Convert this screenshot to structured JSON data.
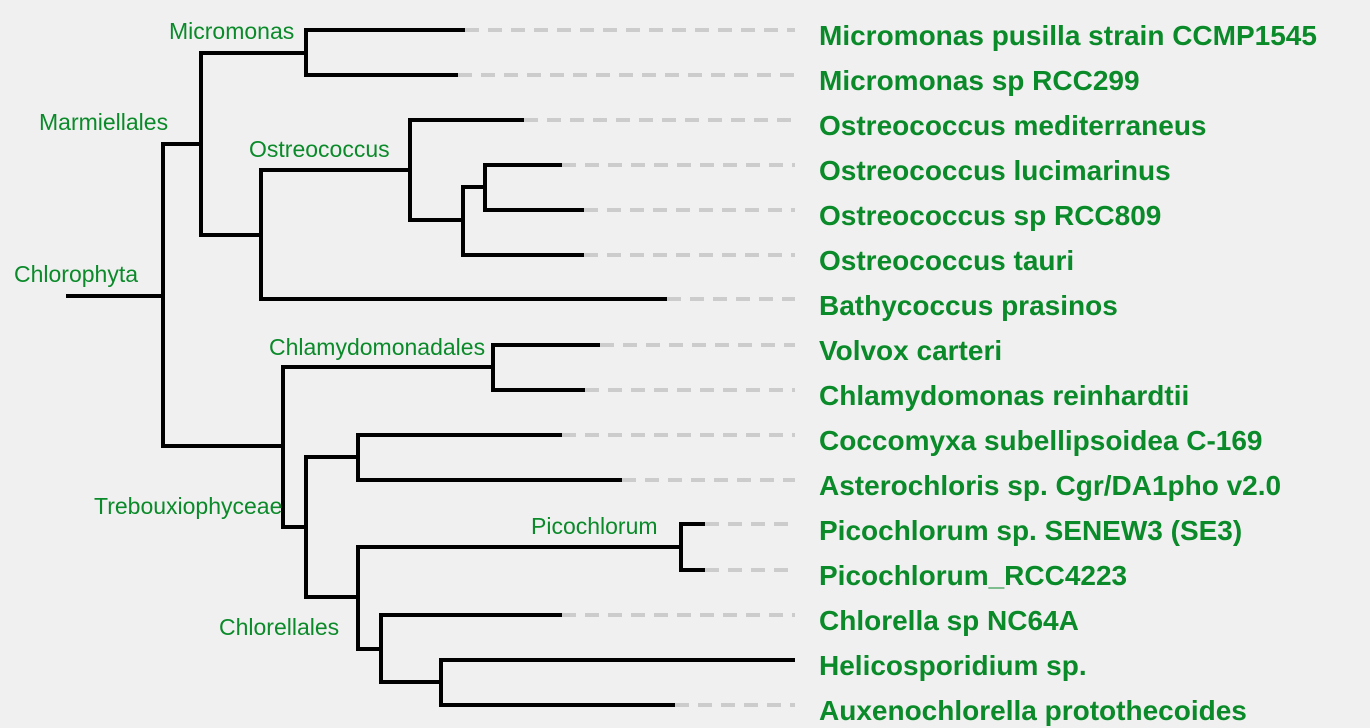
{
  "colors": {
    "label": "#0b8a2a",
    "branch": "#000000",
    "leader": "#cccccc",
    "background": "#f0f0f0"
  },
  "clades": [
    {
      "id": "chlorophyta",
      "label": "Chlorophyta"
    },
    {
      "id": "marmiellales",
      "label": "Marmiellales"
    },
    {
      "id": "micromonas",
      "label": "Micromonas"
    },
    {
      "id": "ostreococcus",
      "label": "Ostreococcus"
    },
    {
      "id": "chlamydomonadales",
      "label": "Chlamydomonadales"
    },
    {
      "id": "trebouxiophyceae",
      "label": "Trebouxiophyceae"
    },
    {
      "id": "picochlorum",
      "label": "Picochlorum"
    },
    {
      "id": "chlorellales",
      "label": "Chlorellales"
    }
  ],
  "leaves": [
    {
      "id": "micromonas-pusilla",
      "label": "Micromonas pusilla strain CCMP1545"
    },
    {
      "id": "micromonas-rcc299",
      "label": "Micromonas sp RCC299"
    },
    {
      "id": "ostreococcus-mediterraneus",
      "label": "Ostreococcus mediterraneus"
    },
    {
      "id": "ostreococcus-lucimarinus",
      "label": "Ostreococcus lucimarinus"
    },
    {
      "id": "ostreococcus-rcc809",
      "label": "Ostreococcus sp RCC809"
    },
    {
      "id": "ostreococcus-tauri",
      "label": "Ostreococcus tauri"
    },
    {
      "id": "bathycoccus-prasinos",
      "label": "Bathycoccus prasinos"
    },
    {
      "id": "volvox-carteri",
      "label": "Volvox carteri"
    },
    {
      "id": "chlamydomonas-reinhardtii",
      "label": "Chlamydomonas reinhardtii"
    },
    {
      "id": "coccomyxa-subellipsoidea",
      "label": "Coccomyxa subellipsoidea C-169"
    },
    {
      "id": "asterochloris",
      "label": "Asterochloris sp. Cgr/DA1pho v2.0"
    },
    {
      "id": "picochlorum-senew3",
      "label": "Picochlorum sp. SENEW3 (SE3)"
    },
    {
      "id": "picochlorum-rcc4223",
      "label": "Picochlorum_RCC4223"
    },
    {
      "id": "chlorella-nc64a",
      "label": "Chlorella sp NC64A"
    },
    {
      "id": "helicosporidium",
      "label": "Helicosporidium sp."
    },
    {
      "id": "auxenochlorella",
      "label": "Auxenochlorella protothecoides"
    }
  ]
}
